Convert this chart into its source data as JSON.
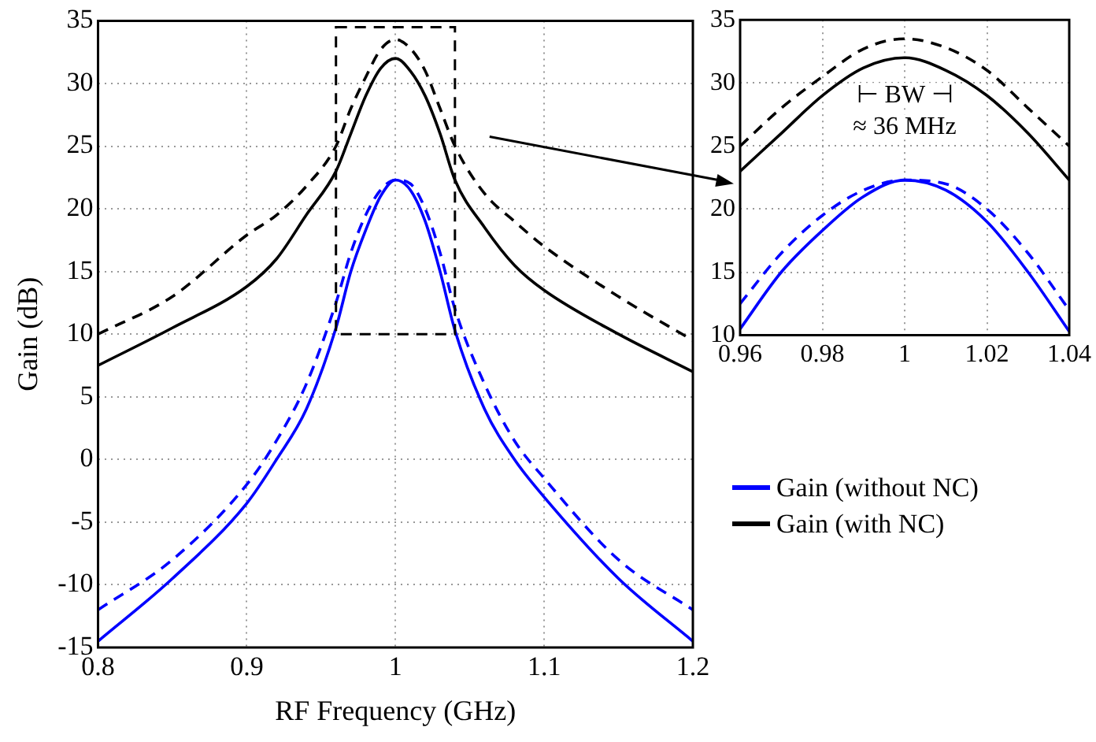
{
  "chart_data": [
    {
      "type": "line",
      "xlabel": "RF Frequency (GHz)",
      "ylabel": "Gain (dB)",
      "x": [
        0.8,
        0.85,
        0.9,
        0.92,
        0.94,
        0.96,
        0.97,
        0.98,
        0.99,
        1.0,
        1.01,
        1.02,
        1.03,
        1.04,
        1.06,
        1.08,
        1.1,
        1.15,
        1.2
      ],
      "series": [
        {
          "name": "Gain (without NC)",
          "color": "#0000ff",
          "line_style": "solid",
          "values": [
            -14.5,
            -9.5,
            -3.5,
            0,
            4,
            10.5,
            15,
            18.3,
            21,
            22.3,
            21.5,
            19,
            15,
            10.3,
            4,
            0,
            -3,
            -9.5,
            -14.5
          ]
        },
        {
          "color": "#0000ff",
          "line_style": "dashed",
          "values": [
            -12,
            -8,
            -2,
            1.5,
            6,
            12.5,
            16.5,
            19.5,
            21.5,
            22.3,
            22,
            20,
            16.5,
            12,
            6,
            1.5,
            -1.5,
            -8,
            -12
          ]
        },
        {
          "name": "Gain (with NC)",
          "color": "#000000",
          "line_style": "solid",
          "values": [
            7.5,
            10.5,
            13.8,
            16,
            19.5,
            23,
            26,
            29,
            31.2,
            32,
            31,
            29,
            26,
            22.3,
            18.5,
            15.5,
            13.5,
            10,
            7
          ]
        },
        {
          "color": "#000000",
          "line_style": "dashed",
          "values": [
            10,
            13,
            17.9,
            19.5,
            21.8,
            25,
            28,
            30.5,
            32.7,
            33.5,
            32.8,
            31,
            28,
            25,
            21.2,
            19,
            17,
            13,
            9.5
          ]
        }
      ],
      "xlim": [
        0.8,
        1.2
      ],
      "xticks": [
        0.8,
        0.9,
        1,
        1.1,
        1.2
      ],
      "ylim": [
        -15,
        35
      ],
      "yticks": [
        -15,
        -10,
        -5,
        0,
        5,
        10,
        15,
        20,
        25,
        30,
        35
      ],
      "grid": true,
      "legend": "right",
      "marker": "none"
    },
    {
      "type": "line",
      "x": [
        0.96,
        0.97,
        0.98,
        0.99,
        1.0,
        1.01,
        1.02,
        1.03,
        1.04
      ],
      "series": [
        {
          "color": "#0000ff",
          "line_style": "solid",
          "values": [
            10.5,
            15,
            18.3,
            21,
            22.3,
            21.5,
            19,
            15,
            10.3
          ]
        },
        {
          "color": "#0000ff",
          "line_style": "dashed",
          "values": [
            12.5,
            16.5,
            19.5,
            21.5,
            22.3,
            22,
            20,
            16.5,
            12
          ]
        },
        {
          "color": "#000000",
          "line_style": "solid",
          "values": [
            23,
            26,
            29,
            31.2,
            32,
            31,
            29,
            26,
            22.3
          ]
        },
        {
          "color": "#000000",
          "line_style": "dashed",
          "values": [
            25,
            28,
            30.5,
            32.7,
            33.5,
            32.8,
            31,
            28,
            25
          ]
        }
      ],
      "xlim": [
        0.96,
        1.04
      ],
      "xticks": [
        0.96,
        0.98,
        1,
        1.02,
        1.04
      ],
      "ylim": [
        10,
        35
      ],
      "yticks": [
        10,
        15,
        20,
        25,
        30,
        35
      ],
      "annotations": [
        "⊢ BW ⊣",
        "≈ 36 MHz"
      ],
      "grid": true,
      "marker": "none"
    }
  ]
}
